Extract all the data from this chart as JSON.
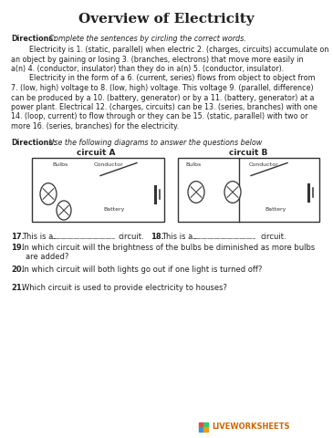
{
  "title": "Overview of Electricity",
  "bg_color": "#ffffff",
  "text_color": "#1a1a1a",
  "para_lines": [
    "        Electricity is 1. (static, parallel) when electric 2. (charges, circuits) accumulate on",
    "an object by gaining or losing 3. (branches, electrons) that move more easily in",
    "a(n) 4. (conductor, insulator) than they do in a(n) 5. (conductor, insulator).",
    "        Electricity in the form of a 6. (current, series) flows from object to object from",
    "7. (low, high) voltage to 8. (low, high) voltage. This voltage 9. (parallel, difference)",
    "can be produced by a 10. (battery, generator) or by a 11. (battery, generator) at a",
    "power plant. Electrical 12. (charges, circuits) can be 13. (series, branches) with one",
    "14. (loop, current) to flow through or they can be 15. (static, parallel) with two or",
    "more 16. (series, branches) for the electricity."
  ],
  "dir1_bold": "Directions:",
  "dir1_italic": " Complete the sentences by circling the correct words.",
  "dir2_bold": "Directions:",
  "dir2_italic": " Use the following diagrams to answer the questions below",
  "circ_a": "circuit A",
  "circ_b": "circuit B",
  "q17_a": "17.  This is a ",
  "q17_b": " circuit.    ",
  "q18_a": "18.  This is a ",
  "q18_b": " circuit.",
  "q19_bold": "19.",
  "q19_text": "  In which circuit will the brightness of the bulbs be diminished as more bulbs",
  "q19_cont": "      are added?",
  "q20_bold": "20.",
  "q20_text": "  In which circuit will both lights go out if one light is turned off?",
  "q21_bold": "21.",
  "q21_text": "  Which circuit is used to provide electricity to houses?",
  "lw_text": "LIVEWORKSHEETS",
  "lw_color": "#cc6600",
  "lw_sq_colors": [
    "#e74c3c",
    "#2ecc71",
    "#3498db",
    "#f39c12"
  ]
}
